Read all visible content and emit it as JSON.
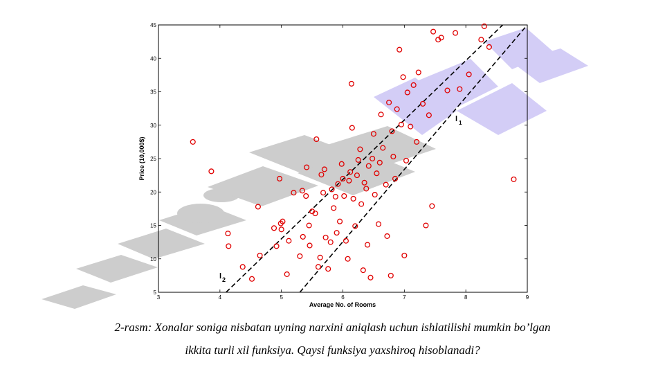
{
  "chart_data": {
    "type": "scatter",
    "xlabel": "Average No. of Rooms",
    "ylabel": "Price (10,000$)",
    "xlim": [
      3,
      9
    ],
    "ylim": [
      5,
      45
    ],
    "xticks": [
      3,
      4,
      5,
      6,
      7,
      8,
      9
    ],
    "yticks": [
      5,
      10,
      15,
      20,
      25,
      30,
      35,
      40,
      45
    ],
    "grid": false,
    "marker_color": "#e00000",
    "lines": [
      {
        "label": "l1",
        "x": [
          5.3,
          9.0
        ],
        "y": [
          5.0,
          45.0
        ]
      },
      {
        "label": "l2",
        "x": [
          4.1,
          8.6
        ],
        "y": [
          5.0,
          45.0
        ]
      }
    ],
    "points": [
      [
        3.56,
        27.5
      ],
      [
        3.86,
        23.1
      ],
      [
        4.13,
        13.8
      ],
      [
        4.14,
        11.9
      ],
      [
        4.37,
        8.8
      ],
      [
        4.52,
        7.0
      ],
      [
        4.62,
        17.8
      ],
      [
        4.65,
        10.5
      ],
      [
        4.88,
        14.6
      ],
      [
        4.92,
        11.9
      ],
      [
        4.97,
        22.0
      ],
      [
        4.99,
        15.3
      ],
      [
        5.0,
        14.4
      ],
      [
        5.02,
        15.6
      ],
      [
        5.09,
        7.7
      ],
      [
        5.12,
        12.7
      ],
      [
        5.2,
        19.9
      ],
      [
        5.3,
        10.4
      ],
      [
        5.34,
        20.2
      ],
      [
        5.35,
        13.3
      ],
      [
        5.4,
        19.4
      ],
      [
        5.41,
        23.7
      ],
      [
        5.45,
        15.0
      ],
      [
        5.46,
        12.0
      ],
      [
        5.5,
        17.1
      ],
      [
        5.55,
        16.8
      ],
      [
        5.57,
        27.9
      ],
      [
        5.6,
        8.8
      ],
      [
        5.63,
        10.2
      ],
      [
        5.65,
        22.6
      ],
      [
        5.68,
        19.9
      ],
      [
        5.7,
        23.4
      ],
      [
        5.72,
        13.2
      ],
      [
        5.76,
        8.5
      ],
      [
        5.8,
        12.5
      ],
      [
        5.82,
        20.4
      ],
      [
        5.85,
        17.6
      ],
      [
        5.88,
        19.3
      ],
      [
        5.9,
        13.9
      ],
      [
        5.92,
        21.2
      ],
      [
        5.95,
        15.6
      ],
      [
        5.98,
        24.2
      ],
      [
        6.0,
        22.0
      ],
      [
        6.02,
        19.4
      ],
      [
        6.05,
        12.7
      ],
      [
        6.08,
        10.0
      ],
      [
        6.1,
        21.7
      ],
      [
        6.12,
        23.0
      ],
      [
        6.14,
        36.2
      ],
      [
        6.15,
        29.6
      ],
      [
        6.17,
        19.0
      ],
      [
        6.2,
        14.9
      ],
      [
        6.23,
        22.5
      ],
      [
        6.25,
        24.8
      ],
      [
        6.28,
        26.4
      ],
      [
        6.3,
        18.2
      ],
      [
        6.33,
        8.3
      ],
      [
        6.35,
        21.4
      ],
      [
        6.38,
        20.5
      ],
      [
        6.4,
        12.1
      ],
      [
        6.42,
        23.9
      ],
      [
        6.45,
        7.2
      ],
      [
        6.48,
        25.0
      ],
      [
        6.5,
        28.7
      ],
      [
        6.52,
        19.6
      ],
      [
        6.55,
        22.8
      ],
      [
        6.58,
        15.2
      ],
      [
        6.6,
        24.4
      ],
      [
        6.62,
        31.6
      ],
      [
        6.65,
        26.6
      ],
      [
        6.7,
        21.1
      ],
      [
        6.72,
        13.4
      ],
      [
        6.75,
        33.4
      ],
      [
        6.78,
        7.5
      ],
      [
        6.8,
        29.1
      ],
      [
        6.82,
        25.3
      ],
      [
        6.85,
        22.0
      ],
      [
        6.88,
        32.4
      ],
      [
        6.92,
        41.3
      ],
      [
        6.95,
        30.1
      ],
      [
        6.98,
        37.2
      ],
      [
        7.0,
        10.5
      ],
      [
        7.03,
        24.7
      ],
      [
        7.05,
        34.9
      ],
      [
        7.1,
        29.8
      ],
      [
        7.15,
        36.0
      ],
      [
        7.2,
        27.5
      ],
      [
        7.23,
        37.9
      ],
      [
        7.3,
        33.2
      ],
      [
        7.35,
        15.0
      ],
      [
        7.4,
        31.5
      ],
      [
        7.45,
        17.9
      ],
      [
        7.47,
        44.0
      ],
      [
        7.55,
        42.8
      ],
      [
        7.6,
        43.1
      ],
      [
        7.7,
        35.2
      ],
      [
        7.83,
        43.8
      ],
      [
        7.9,
        35.4
      ],
      [
        8.05,
        37.6
      ],
      [
        8.25,
        42.8
      ],
      [
        8.3,
        44.8
      ],
      [
        8.38,
        41.7
      ],
      [
        8.78,
        21.9
      ]
    ]
  },
  "caption": {
    "line1": "2-rasm: Xonalar soniga nisbatan uyning narxini aniqlash uchun ishlatilishi mumkin bo’lgan",
    "line2": "ikkita turli xil funksiya. Qaysi funksiya yaxshiroq hisoblanadi?"
  }
}
